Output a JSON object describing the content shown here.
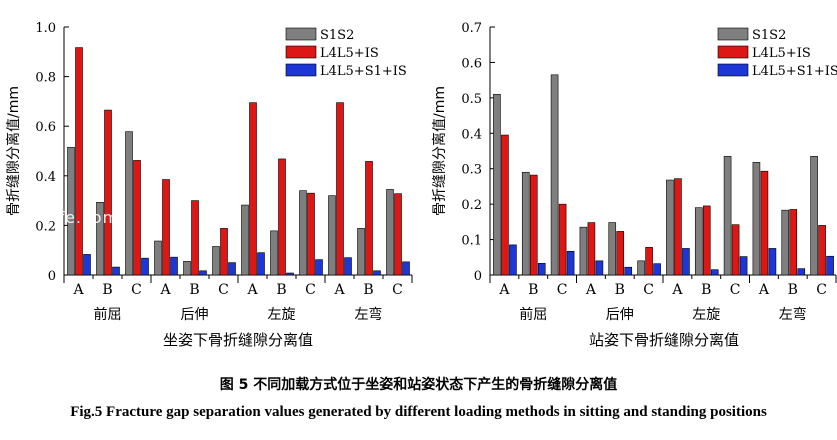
{
  "caption_cn": "图 5 不同加载方式位于坐姿和站姿状态下产生的骨折缝隙分离值",
  "caption_en": "Fig.5 Fracture gap separation values generated by different loading methods in sitting and standing positions",
  "watermark": "02 fe.com",
  "colors": {
    "S1S2": "#7f7f7f",
    "L4L5+IS": "#dd1616",
    "L4L5+S1+IS": "#1c37d6"
  },
  "chart_data": [
    {
      "type": "bar",
      "title": "坐姿下骨折缝隙分离值",
      "ylabel": "骨折缝隙分离值/mm",
      "xlabel": "",
      "ylim": [
        0,
        1.0
      ],
      "yticks": [
        0,
        0.2,
        0.4,
        0.6,
        0.8,
        1.0
      ],
      "ytick_labels": [
        "0",
        "0.2",
        "0.4",
        "0.6",
        "0.8",
        "1.0"
      ],
      "groups": [
        "前屈",
        "后伸",
        "左旋",
        "左弯"
      ],
      "subcategories": [
        "A",
        "B",
        "C"
      ],
      "legend_position": "top-right",
      "grid": false,
      "series": [
        {
          "name": "S1S2",
          "values": [
            0.515,
            0.293,
            0.578,
            0.137,
            0.055,
            0.115,
            0.282,
            0.178,
            0.34,
            0.32,
            0.188,
            0.345
          ]
        },
        {
          "name": "L4L5+IS",
          "values": [
            0.917,
            0.665,
            0.462,
            0.385,
            0.3,
            0.188,
            0.695,
            0.468,
            0.33,
            0.695,
            0.458,
            0.328
          ]
        },
        {
          "name": "L4L5+S1+IS",
          "values": [
            0.083,
            0.032,
            0.068,
            0.072,
            0.017,
            0.05,
            0.09,
            0.008,
            0.062,
            0.07,
            0.017,
            0.053
          ]
        }
      ]
    },
    {
      "type": "bar",
      "title": "站姿下骨折缝隙分离值",
      "ylabel": "骨折缝隙分离值/mm",
      "xlabel": "",
      "ylim": [
        0,
        0.7
      ],
      "yticks": [
        0,
        0.1,
        0.2,
        0.3,
        0.4,
        0.5,
        0.6,
        0.7
      ],
      "ytick_labels": [
        "0",
        "0.1",
        "0.2",
        "0.3",
        "0.4",
        "0.5",
        "0.6",
        "0.7"
      ],
      "groups": [
        "前屈",
        "后伸",
        "左旋",
        "左弯"
      ],
      "subcategories": [
        "A",
        "B",
        "C"
      ],
      "legend_position": "top-right",
      "grid": false,
      "series": [
        {
          "name": "S1S2",
          "values": [
            0.51,
            0.29,
            0.565,
            0.135,
            0.148,
            0.04,
            0.268,
            0.19,
            0.335,
            0.318,
            0.183,
            0.335
          ]
        },
        {
          "name": "L4L5+IS",
          "values": [
            0.395,
            0.282,
            0.2,
            0.148,
            0.123,
            0.078,
            0.272,
            0.195,
            0.142,
            0.293,
            0.185,
            0.14
          ]
        },
        {
          "name": "L4L5+S1+IS",
          "values": [
            0.085,
            0.033,
            0.067,
            0.04,
            0.022,
            0.032,
            0.075,
            0.015,
            0.052,
            0.075,
            0.018,
            0.053
          ]
        }
      ]
    }
  ]
}
